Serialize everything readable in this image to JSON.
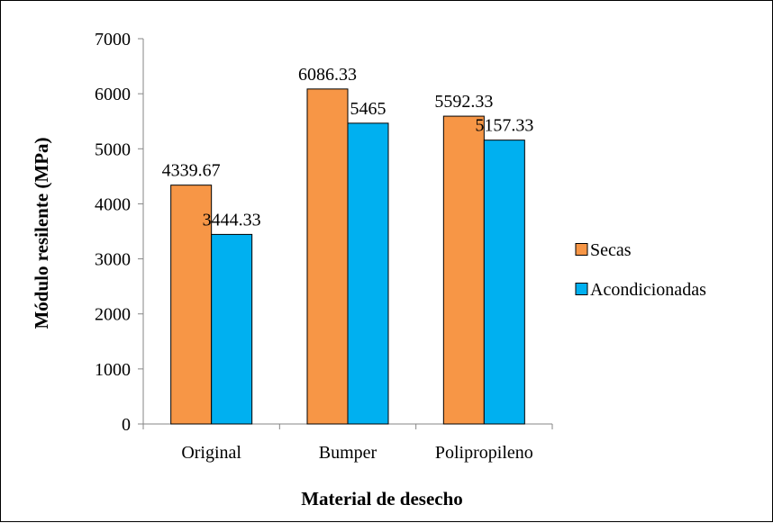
{
  "chart_data": {
    "type": "bar",
    "title": "",
    "xlabel": "Material de desecho",
    "ylabel": "Módulo resilente (MPa)",
    "categories": [
      "Original",
      "Bumper",
      "Polipropileno"
    ],
    "series": [
      {
        "name": "Secas",
        "values": [
          4339.67,
          6086.33,
          5592.33
        ],
        "labels": [
          "4339.67",
          "6086.33",
          "5592.33"
        ],
        "color": "#F79646"
      },
      {
        "name": "Acondicionadas",
        "values": [
          3444.33,
          5465,
          5157.33
        ],
        "labels": [
          "3444.33",
          "5465",
          "5157.33"
        ],
        "color": "#00B0F0"
      }
    ],
    "ylim": [
      0,
      7000
    ],
    "yticks": [
      "0",
      "1000",
      "2000",
      "3000",
      "4000",
      "5000",
      "6000",
      "7000"
    ],
    "grid": false,
    "legend": "right"
  }
}
